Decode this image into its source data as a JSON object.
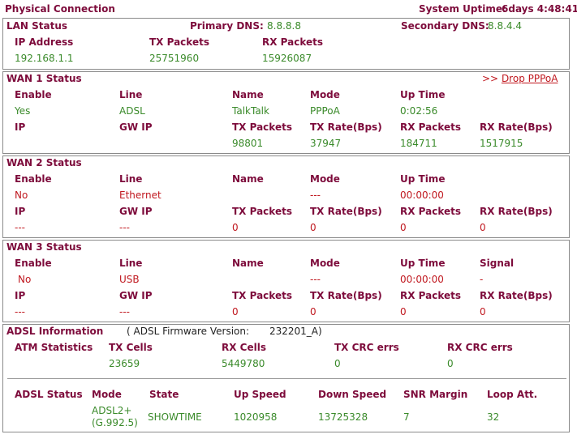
{
  "header": {
    "title": "Physical Connection",
    "uptime_label": "System Uptime:",
    "uptime_value": "6days 4:48:41"
  },
  "lan": {
    "title": "LAN Status",
    "primary_dns_label": "Primary DNS:",
    "primary_dns": "8.8.8.8",
    "secondary_dns_label": "Secondary DNS:",
    "secondary_dns": "8.8.4.4",
    "col_ip": "IP Address",
    "col_tx": "TX Packets",
    "col_rx": "RX Packets",
    "ip": "192.168.1.1",
    "tx": "25751960",
    "rx": "15926087"
  },
  "wan1": {
    "title": "WAN 1 Status",
    "action": "Drop PPPoA",
    "action_prefix": ">>",
    "h_enable": "Enable",
    "h_line": "Line",
    "h_name": "Name",
    "h_mode": "Mode",
    "h_uptime": "Up Time",
    "enable": "Yes",
    "line": "ADSL",
    "name": "TalkTalk",
    "mode": "PPPoA",
    "uptime": "0:02:56",
    "h_ip": "IP",
    "h_gwip": "GW IP",
    "h_txp": "TX Packets",
    "h_txr": "TX Rate(Bps)",
    "h_rxp": "RX Packets",
    "h_rxr": "RX Rate(Bps)",
    "txp": "98801",
    "txr": "37947",
    "rxp": "184711",
    "rxr": "1517915"
  },
  "wan2": {
    "title": "WAN 2 Status",
    "h_enable": "Enable",
    "h_line": "Line",
    "h_name": "Name",
    "h_mode": "Mode",
    "h_uptime": "Up Time",
    "enable": "No",
    "line": "Ethernet",
    "mode": "---",
    "uptime": "00:00:00",
    "h_ip": "IP",
    "h_gwip": "GW IP",
    "h_txp": "TX Packets",
    "h_txr": "TX Rate(Bps)",
    "h_rxp": "RX Packets",
    "h_rxr": "RX Rate(Bps)",
    "ip": "---",
    "gwip": "---",
    "txp": "0",
    "txr": "0",
    "rxp": "0",
    "rxr": "0"
  },
  "wan3": {
    "title": "WAN 3 Status",
    "h_enable": "Enable",
    "h_line": "Line",
    "h_name": "Name",
    "h_mode": "Mode",
    "h_uptime": "Up Time",
    "h_signal": "Signal",
    "enable": "No",
    "line": "USB",
    "mode": "---",
    "uptime": "00:00:00",
    "signal": "-",
    "h_ip": "IP",
    "h_gwip": "GW IP",
    "h_txp": "TX Packets",
    "h_txr": "TX Rate(Bps)",
    "h_rxp": "RX Packets",
    "h_rxr": "RX Rate(Bps)",
    "ip": "---",
    "gwip": "---",
    "txp": "0",
    "txr": "0",
    "rxp": "0",
    "rxr": "0"
  },
  "adsl": {
    "title": "ADSL Information",
    "fw_label": "( ADSL Firmware Version:",
    "fw_value": "232201_A)",
    "atm_label": "ATM Statistics",
    "h_txc": "TX Cells",
    "h_rxc": "RX Cells",
    "h_txcrc": "TX CRC errs",
    "h_rxcrc": "RX CRC errs",
    "txc": "23659",
    "rxc": "5449780",
    "txcrc": "0",
    "rxcrc": "0",
    "status_label": "ADSL Status",
    "h_mode": "Mode",
    "h_state": "State",
    "h_up": "Up Speed",
    "h_down": "Down Speed",
    "h_snr": "SNR Margin",
    "h_loop": "Loop Att.",
    "mode_line1": "ADSL2+",
    "mode_line2": "(G.992.5)",
    "state": "SHOWTIME",
    "up": "1020958",
    "down": "13725328",
    "snr": "7",
    "loop": "32"
  }
}
